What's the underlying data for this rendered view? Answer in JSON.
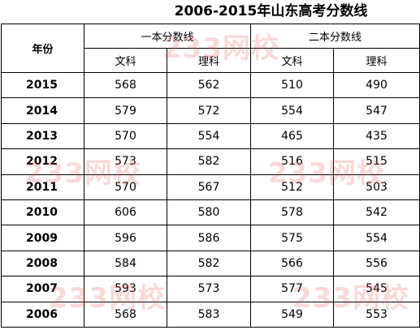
{
  "title": "2006-2015年山东高考分数线",
  "watermark": "233网校",
  "header": {
    "year": "年份",
    "groups": [
      {
        "label": "一本分数线",
        "subs": [
          "文科",
          "理科"
        ]
      },
      {
        "label": "二本分数线",
        "subs": [
          "文科",
          "理科"
        ]
      }
    ]
  },
  "table": {
    "rows": [
      [
        2015,
        568,
        562,
        510,
        490
      ],
      [
        2014,
        579,
        572,
        554,
        547
      ],
      [
        2013,
        570,
        554,
        465,
        435
      ],
      [
        2012,
        573,
        582,
        516,
        515
      ],
      [
        2011,
        570,
        567,
        512,
        503
      ],
      [
        2010,
        606,
        580,
        578,
        542
      ],
      [
        2009,
        596,
        586,
        575,
        554
      ],
      [
        2008,
        584,
        582,
        566,
        556
      ],
      [
        2007,
        593,
        573,
        577,
        545
      ],
      [
        2006,
        568,
        583,
        549,
        553
      ]
    ]
  }
}
